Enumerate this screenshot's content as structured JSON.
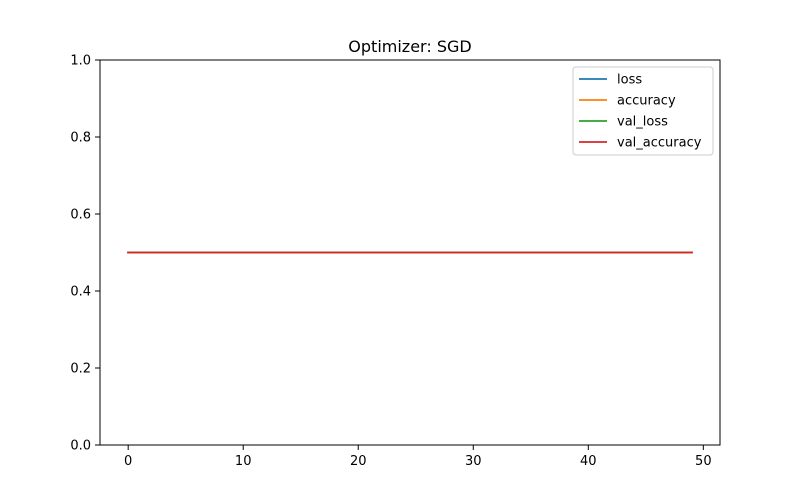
{
  "chart_data": {
    "type": "line",
    "title": "Optimizer: SGD",
    "xlabel": "",
    "ylabel": "",
    "xlim": [
      -2.45,
      51.45
    ],
    "ylim": [
      0.0,
      1.0
    ],
    "x_ticks": [
      0,
      10,
      20,
      30,
      40,
      50
    ],
    "y_ticks": [
      0.0,
      0.2,
      0.4,
      0.6,
      0.8,
      1.0
    ],
    "x_tick_labels": [
      "0",
      "10",
      "20",
      "30",
      "40",
      "50"
    ],
    "y_tick_labels": [
      "0.0",
      "0.2",
      "0.4",
      "0.6",
      "0.8",
      "1.0"
    ],
    "grid": false,
    "legend_position": "top-right",
    "x": [
      0,
      1,
      2,
      3,
      4,
      5,
      6,
      7,
      8,
      9,
      10,
      11,
      12,
      13,
      14,
      15,
      16,
      17,
      18,
      19,
      20,
      21,
      22,
      23,
      24,
      25,
      26,
      27,
      28,
      29,
      30,
      31,
      32,
      33,
      34,
      35,
      36,
      37,
      38,
      39,
      40,
      41,
      42,
      43,
      44,
      45,
      46,
      47,
      48,
      49
    ],
    "series": [
      {
        "name": "loss",
        "color": "#1f77b4",
        "values": [
          0.5,
          0.5,
          0.5,
          0.5,
          0.5,
          0.5,
          0.5,
          0.5,
          0.5,
          0.5,
          0.5,
          0.5,
          0.5,
          0.5,
          0.5,
          0.5,
          0.5,
          0.5,
          0.5,
          0.5,
          0.5,
          0.5,
          0.5,
          0.5,
          0.5,
          0.5,
          0.5,
          0.5,
          0.5,
          0.5,
          0.5,
          0.5,
          0.5,
          0.5,
          0.5,
          0.5,
          0.5,
          0.5,
          0.5,
          0.5,
          0.5,
          0.5,
          0.5,
          0.5,
          0.5,
          0.5,
          0.5,
          0.5,
          0.5,
          0.5
        ]
      },
      {
        "name": "accuracy",
        "color": "#ff7f0e",
        "values": [
          0.5,
          0.5,
          0.5,
          0.5,
          0.5,
          0.5,
          0.5,
          0.5,
          0.5,
          0.5,
          0.5,
          0.5,
          0.5,
          0.5,
          0.5,
          0.5,
          0.5,
          0.5,
          0.5,
          0.5,
          0.5,
          0.5,
          0.5,
          0.5,
          0.5,
          0.5,
          0.5,
          0.5,
          0.5,
          0.5,
          0.5,
          0.5,
          0.5,
          0.5,
          0.5,
          0.5,
          0.5,
          0.5,
          0.5,
          0.5,
          0.5,
          0.5,
          0.5,
          0.5,
          0.5,
          0.5,
          0.5,
          0.5,
          0.5,
          0.5
        ]
      },
      {
        "name": "val_loss",
        "color": "#2ca02c",
        "values": [
          0.5,
          0.5,
          0.5,
          0.5,
          0.5,
          0.5,
          0.5,
          0.5,
          0.5,
          0.5,
          0.5,
          0.5,
          0.5,
          0.5,
          0.5,
          0.5,
          0.5,
          0.5,
          0.5,
          0.5,
          0.5,
          0.5,
          0.5,
          0.5,
          0.5,
          0.5,
          0.5,
          0.5,
          0.5,
          0.5,
          0.5,
          0.5,
          0.5,
          0.5,
          0.5,
          0.5,
          0.5,
          0.5,
          0.5,
          0.5,
          0.5,
          0.5,
          0.5,
          0.5,
          0.5,
          0.5,
          0.5,
          0.5,
          0.5,
          0.5
        ]
      },
      {
        "name": "val_accuracy",
        "color": "#d62728",
        "values": [
          0.5,
          0.5,
          0.5,
          0.5,
          0.5,
          0.5,
          0.5,
          0.5,
          0.5,
          0.5,
          0.5,
          0.5,
          0.5,
          0.5,
          0.5,
          0.5,
          0.5,
          0.5,
          0.5,
          0.5,
          0.5,
          0.5,
          0.5,
          0.5,
          0.5,
          0.5,
          0.5,
          0.5,
          0.5,
          0.5,
          0.5,
          0.5,
          0.5,
          0.5,
          0.5,
          0.5,
          0.5,
          0.5,
          0.5,
          0.5,
          0.5,
          0.5,
          0.5,
          0.5,
          0.5,
          0.5,
          0.5,
          0.5,
          0.5,
          0.5
        ]
      }
    ]
  }
}
